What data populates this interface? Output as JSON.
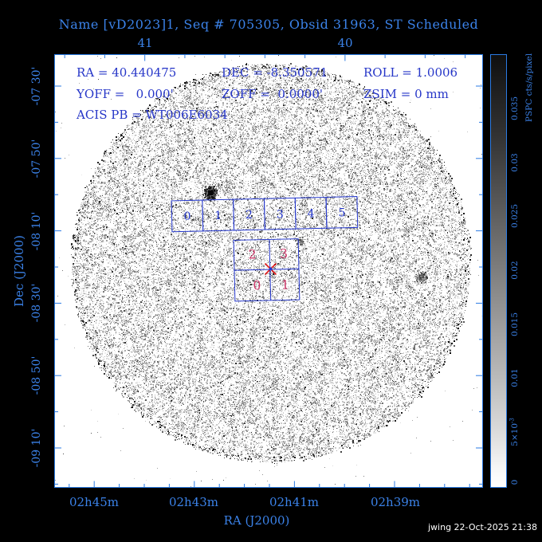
{
  "title": "Name [vD2023]1, Seq # 705305, Obsid 31963, ST Scheduled",
  "header": {
    "ra": "RA = 40.440475",
    "dec": "DEC = -8.350571",
    "roll": "ROLL = 1.0006",
    "yoff": "YOFF =   0.000'",
    "zoff": "ZOFF =  0.0000'",
    "zsim": "ZSIM = 0 mm",
    "acis_pb": "ACIS PB = WT006E6034"
  },
  "axes": {
    "top": {
      "labels": [
        {
          "t": "41"
        },
        {
          "t": "40"
        }
      ]
    },
    "bottom": {
      "title": "RA (J2000)",
      "labels": [
        {
          "t": "02h45m"
        },
        {
          "t": "02h43m"
        },
        {
          "t": "02h41m"
        },
        {
          "t": "02h39m"
        }
      ]
    },
    "left": {
      "title": "Dec (J2000)",
      "labels": [
        {
          "t": "-07 30'"
        },
        {
          "t": "-07 50'"
        },
        {
          "t": "-08 10'"
        },
        {
          "t": "-08 30'"
        },
        {
          "t": "-08 50'"
        },
        {
          "t": "-09 10'"
        }
      ]
    }
  },
  "colorbar": {
    "title": "PSPC cts/s/pixel",
    "labels": [
      {
        "t": "0.035"
      },
      {
        "t": "0.03"
      },
      {
        "t": "0.025"
      },
      {
        "t": "0.02"
      },
      {
        "t": "0.015"
      },
      {
        "t": "0.01"
      },
      {
        "t": "5×10",
        "sup": "-3"
      },
      {
        "t": "0"
      }
    ]
  },
  "detectors": {
    "acis_s_labels": [
      "0",
      "1",
      "2",
      "3",
      "4",
      "5"
    ],
    "acis_i_labels": [
      "2",
      "3",
      "0",
      "1"
    ]
  },
  "footer": "jwing 22-Oct-2025 21:38",
  "colors": {
    "axis_blue": "#2b7be4",
    "label_blue": "#3b82e8",
    "annotation_blue": "#2636c8",
    "detector_blue": "#2336cc",
    "chip_magenta": "#cc3366",
    "marker_red": "#dc1414"
  }
}
